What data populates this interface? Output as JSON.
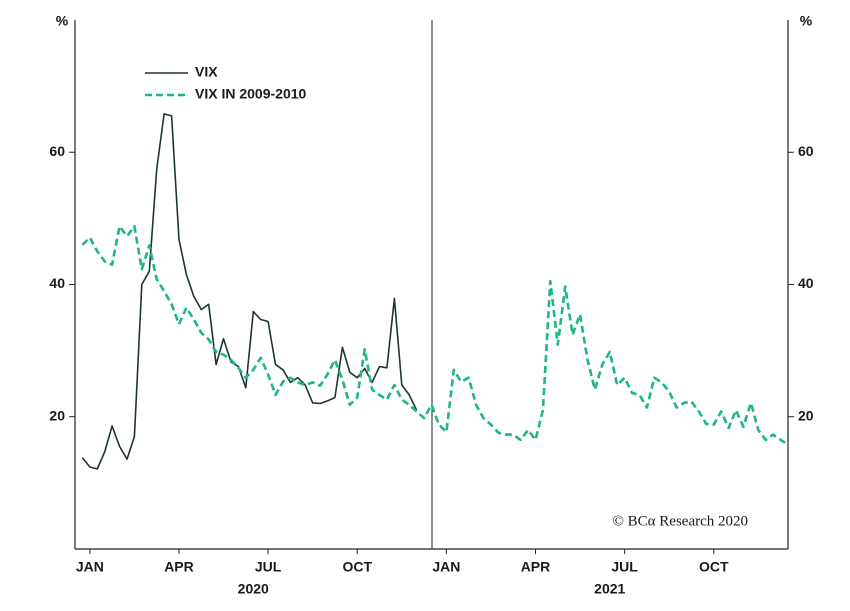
{
  "chart_data": {
    "type": "line",
    "ylabel": "%",
    "y2label": "%",
    "xlim": [
      0,
      24
    ],
    "xticks": [
      {
        "value": 0.5,
        "label": "JAN"
      },
      {
        "value": 3.5,
        "label": "APR"
      },
      {
        "value": 6.5,
        "label": "JUL"
      },
      {
        "value": 9.5,
        "label": "OCT"
      },
      {
        "value": 12.5,
        "label": "JAN"
      },
      {
        "value": 15.5,
        "label": "APR"
      },
      {
        "value": 18.5,
        "label": "JUL"
      },
      {
        "value": 21.5,
        "label": "OCT"
      }
    ],
    "years": [
      "2020",
      "2021"
    ],
    "ylim": [
      0,
      80
    ],
    "yticks": [
      20,
      40,
      60
    ],
    "y2lim": [
      0,
      80
    ],
    "y2ticks": [
      20,
      40,
      60
    ],
    "legend": "upper left",
    "source": "© BCα Research 2020",
    "x": [
      0.25,
      0.5,
      0.75,
      1,
      1.25,
      1.5,
      1.75,
      2,
      2.25,
      2.5,
      2.75,
      3,
      3.25,
      3.5,
      3.75,
      4,
      4.25,
      4.5,
      4.75,
      5,
      5.25,
      5.5,
      5.75,
      6,
      6.25,
      6.5,
      6.75,
      7,
      7.25,
      7.5,
      7.75,
      8,
      8.25,
      8.5,
      8.75,
      9,
      9.25,
      9.5,
      9.75,
      10,
      10.25,
      10.5,
      10.75,
      11,
      11.25,
      11.5,
      11.75,
      12,
      12.25,
      12.5,
      12.75,
      13,
      13.25,
      13.5,
      13.75,
      14,
      14.25,
      14.5,
      14.75,
      15,
      15.25,
      15.5,
      15.75,
      16,
      16.25,
      16.5,
      16.75,
      17,
      17.25,
      17.5,
      17.75,
      18,
      18.25,
      18.5,
      18.75,
      19,
      19.25,
      19.5,
      19.75,
      20,
      20.25,
      20.5,
      20.75,
      21,
      21.25,
      21.5,
      21.75,
      22,
      22.25,
      22.5,
      22.75,
      23,
      23.25,
      23.5,
      23.75,
      24
    ],
    "series": [
      {
        "name": "VIX",
        "color": "#1f3535",
        "dash": false,
        "values": [
          13.8,
          12.4,
          12.1,
          14.7,
          18.6,
          15.5,
          13.6,
          17,
          40,
          42,
          57.4,
          65.8,
          65.5,
          46.8,
          41.5,
          38.2,
          36.2,
          37,
          27.9,
          31.8,
          28.3,
          27.6,
          24.4,
          35.9,
          34.7,
          34.4,
          27.9,
          27.1,
          25.2,
          25.9,
          24.8,
          22.1,
          22,
          22.4,
          22.9,
          30.5,
          26.7,
          25.9,
          27.3,
          25.2,
          27.6,
          27.4,
          37.9,
          24.8,
          23.3,
          21,
          null,
          null,
          null,
          null,
          null,
          null,
          null,
          null,
          null,
          null,
          null,
          null,
          null,
          null,
          null,
          null,
          null,
          null,
          null,
          null,
          null,
          null,
          null,
          null,
          null,
          null,
          null,
          null,
          null,
          null,
          null,
          null,
          null,
          null,
          null,
          null,
          null,
          null,
          null,
          null,
          null,
          null,
          null,
          null,
          null,
          null,
          null,
          null,
          null,
          null
        ]
      },
      {
        "name": "VIX IN 2009-2010",
        "color": "#1db68a",
        "dash": true,
        "values": [
          46,
          47.1,
          45,
          43.5,
          43,
          48.8,
          47.3,
          48.8,
          42.3,
          45.9,
          40.8,
          39,
          37,
          34,
          36.5,
          34.7,
          32.7,
          31.7,
          29.8,
          29.4,
          28.6,
          27.4,
          25.9,
          27.1,
          28.9,
          26.4,
          23.3,
          25.3,
          25.9,
          25.2,
          24.8,
          25.2,
          24.7,
          26.4,
          28.6,
          25.6,
          21.8,
          22.9,
          30.2,
          24.1,
          23.3,
          22.6,
          24.8,
          22.6,
          21.8,
          20.8,
          19.8,
          21.8,
          18.8,
          17.7,
          27.1,
          25.3,
          25.9,
          21.8,
          19.8,
          18.8,
          17.6,
          17.3,
          17.3,
          16.5,
          18,
          16.5,
          21,
          40.5,
          30.9,
          39.7,
          32.4,
          35.5,
          28.6,
          24.1,
          27.9,
          29.8,
          24.8,
          25.9,
          23.6,
          23.3,
          21.4,
          25.9,
          25.2,
          23.8,
          21.4,
          22.1,
          22.3,
          20.8,
          18.9,
          18.8,
          20.8,
          18.3,
          21,
          18.5,
          22.1,
          18,
          16.5,
          17.3,
          16.5,
          15.8
        ]
      }
    ]
  }
}
